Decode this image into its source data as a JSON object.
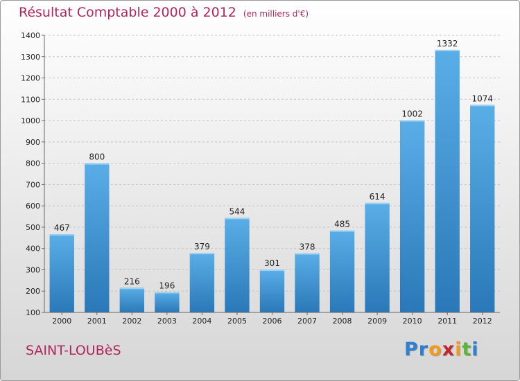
{
  "header": {
    "title": "Résultat Comptable 2000 à 2012",
    "subtitle": "(en milliers d'€)"
  },
  "footer": {
    "commune": "SAINT-LOUBèS",
    "logo_text": "Proxiti",
    "logo_letter_colors": [
      "#2f7fd1",
      "#2f7fd1",
      "#f39a1c",
      "#c2262e",
      "#f39a1c",
      "#5bb53a",
      "#2f7fd1"
    ]
  },
  "colors": {
    "title": "#b3255a",
    "bar_top": "#5aaee6",
    "bar_bottom": "#2a78b8"
  },
  "chart_data": {
    "type": "bar",
    "categories": [
      "2000",
      "2001",
      "2002",
      "2003",
      "2004",
      "2005",
      "2006",
      "2007",
      "2008",
      "2009",
      "2010",
      "2011",
      "2012"
    ],
    "values": [
      467,
      800,
      216,
      196,
      379,
      544,
      301,
      378,
      485,
      614,
      1002,
      1332,
      1074
    ],
    "title": "Résultat Comptable 2000 à 2012",
    "xlabel": "",
    "ylabel": "",
    "ylim": [
      100,
      1400
    ],
    "yticks": [
      100,
      200,
      300,
      400,
      500,
      600,
      700,
      800,
      900,
      1000,
      1100,
      1200,
      1300,
      1400
    ],
    "grid": true,
    "data_labels": true
  }
}
